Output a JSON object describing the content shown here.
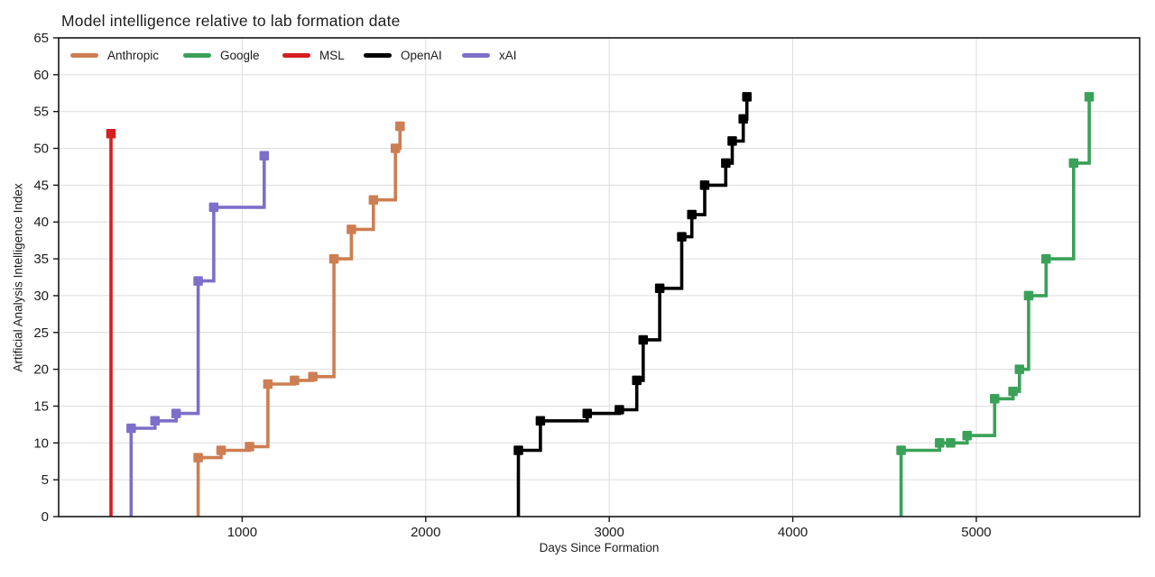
{
  "chart_data": {
    "type": "line",
    "subtype": "step-after",
    "title": "Model intelligence relative to lab formation date",
    "xlabel": "Days Since Formation",
    "ylabel": "Artificial Analysis Intelligence Index",
    "xlim": [
      0,
      5890
    ],
    "ylim": [
      0,
      65
    ],
    "x_ticks": [
      1000,
      2000,
      3000,
      4000,
      5000
    ],
    "y_ticks": [
      0,
      5,
      10,
      15,
      20,
      25,
      30,
      35,
      40,
      45,
      50,
      55,
      60,
      65
    ],
    "grid": true,
    "legend_position": "top-inside-row",
    "marker": "square",
    "series_start_at_zero": true,
    "series": [
      {
        "name": "Anthropic",
        "color": "#cd7e52",
        "points": [
          [
            760,
            8
          ],
          [
            885,
            9
          ],
          [
            1040,
            9.5
          ],
          [
            1140,
            18
          ],
          [
            1285,
            18.5
          ],
          [
            1385,
            19
          ],
          [
            1500,
            35
          ],
          [
            1595,
            39
          ],
          [
            1715,
            43
          ],
          [
            1835,
            50
          ],
          [
            1860,
            53
          ]
        ]
      },
      {
        "name": "Google",
        "color": "#3aa158",
        "points": [
          [
            4590,
            9
          ],
          [
            4800,
            10
          ],
          [
            4860,
            10
          ],
          [
            4950,
            11
          ],
          [
            5100,
            16
          ],
          [
            5200,
            17
          ],
          [
            5235,
            20
          ],
          [
            5285,
            30
          ],
          [
            5380,
            35
          ],
          [
            5530,
            48
          ],
          [
            5615,
            57
          ]
        ]
      },
      {
        "name": "MSL",
        "color": "#d41f1f",
        "points": [
          [
            285,
            52
          ]
        ]
      },
      {
        "name": "OpenAI",
        "color": "#000000",
        "points": [
          [
            2505,
            9
          ],
          [
            2625,
            13
          ],
          [
            2880,
            14
          ],
          [
            3055,
            14.5
          ],
          [
            3150,
            18.5
          ],
          [
            3185,
            24
          ],
          [
            3275,
            31
          ],
          [
            3395,
            38
          ],
          [
            3450,
            41
          ],
          [
            3520,
            45
          ],
          [
            3635,
            48
          ],
          [
            3670,
            51
          ],
          [
            3730,
            54
          ],
          [
            3750,
            57
          ]
        ]
      },
      {
        "name": "xAI",
        "color": "#7d6fc9",
        "points": [
          [
            395,
            12
          ],
          [
            525,
            13
          ],
          [
            640,
            14
          ],
          [
            760,
            32
          ],
          [
            845,
            42
          ],
          [
            1120,
            49
          ]
        ]
      }
    ]
  }
}
